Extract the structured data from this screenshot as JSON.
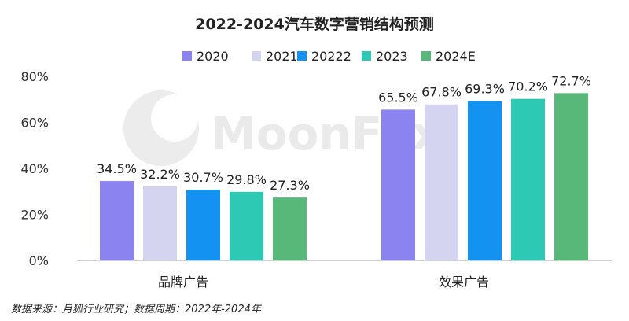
{
  "source_note": "数据来源：月狐行业研究；数据周期：2022年-2024年",
  "watermark_text": "MoonFox",
  "chart_data": {
    "type": "bar",
    "title": "2022-2024汽车数字营销结构预测",
    "categories": [
      "品牌广告",
      "效果广告"
    ],
    "series": [
      {
        "name": "2020",
        "color": "#8b83ef",
        "values": [
          34.5,
          65.5
        ]
      },
      {
        "name": "2021",
        "color": "#d4d4f0",
        "values": [
          32.2,
          67.8
        ]
      },
      {
        "name": "20222",
        "color": "#1492f2",
        "values": [
          30.7,
          69.3
        ]
      },
      {
        "name": "2023",
        "color": "#2ec9b5",
        "values": [
          29.8,
          70.2
        ]
      },
      {
        "name": "2024E",
        "color": "#57b87a",
        "values": [
          27.3,
          72.7
        ]
      }
    ],
    "value_labels": [
      [
        "34.5%",
        "65.5%"
      ],
      [
        "32.2%",
        "67.8%"
      ],
      [
        "30.7%",
        "69.3%"
      ],
      [
        "29.8%",
        "70.2%"
      ],
      [
        "27.3%",
        "72.7%"
      ]
    ],
    "y_ticks": [
      "0%",
      "20%",
      "40%",
      "60%",
      "80%"
    ],
    "y_tick_values": [
      0,
      20,
      40,
      60,
      80
    ],
    "ylim": [
      0,
      80
    ],
    "xlabel": "",
    "ylabel": "",
    "grid": false,
    "legend_position": "top-center"
  }
}
